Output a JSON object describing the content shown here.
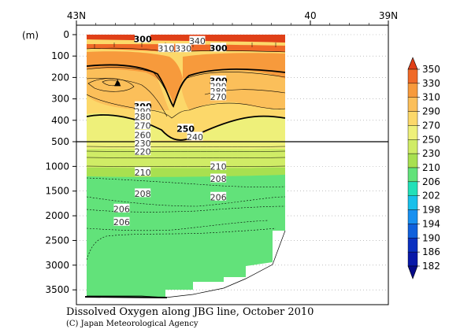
{
  "chart_data": {
    "type": "heatmap",
    "title": "Dissolved Oxygen along JBG line, October 2010",
    "credit": "(C) Japan Meteorological Agency",
    "ylabel": "(m)",
    "x_axis": {
      "ticks": [
        {
          "label": "43N",
          "lat": 43
        },
        {
          "label": "40",
          "lat": 40
        },
        {
          "label": "39N",
          "lat": 39
        }
      ],
      "range": [
        43,
        39
      ]
    },
    "y_axis": {
      "upper_panel": {
        "range": [
          0,
          500
        ],
        "ticks": [
          0,
          100,
          200,
          300,
          400,
          500
        ]
      },
      "lower_panel": {
        "range": [
          500,
          3800
        ],
        "ticks": [
          1000,
          1500,
          2000,
          2500,
          3000,
          3500
        ]
      }
    },
    "contour_labels": [
      {
        "text": "300",
        "lat": 42.15,
        "depth": 20,
        "bold": true
      },
      {
        "text": "310",
        "lat": 41.85,
        "depth": 65,
        "bold": false
      },
      {
        "text": "330",
        "lat": 41.63,
        "depth": 65,
        "bold": false
      },
      {
        "text": "340",
        "lat": 41.45,
        "depth": 30,
        "bold": false
      },
      {
        "text": "300",
        "lat": 41.18,
        "depth": 62,
        "bold": true
      },
      {
        "text": "300",
        "lat": 41.18,
        "depth": 215,
        "bold": true
      },
      {
        "text": "290",
        "lat": 41.18,
        "depth": 240,
        "bold": false
      },
      {
        "text": "280",
        "lat": 41.18,
        "depth": 265,
        "bold": false
      },
      {
        "text": "270",
        "lat": 41.18,
        "depth": 290,
        "bold": false
      },
      {
        "text": "300",
        "lat": 42.15,
        "depth": 335,
        "bold": true
      },
      {
        "text": "290",
        "lat": 42.15,
        "depth": 358,
        "bold": false
      },
      {
        "text": "280",
        "lat": 42.15,
        "depth": 383,
        "bold": false
      },
      {
        "text": "270",
        "lat": 42.15,
        "depth": 425,
        "bold": false
      },
      {
        "text": "260",
        "lat": 42.15,
        "depth": 468,
        "bold": false
      },
      {
        "text": "250",
        "lat": 41.6,
        "depth": 440,
        "bold": true
      },
      {
        "text": "240",
        "lat": 41.48,
        "depth": 478,
        "bold": false
      },
      {
        "text": "230",
        "lat": 42.15,
        "depth": 530,
        "bold": false
      },
      {
        "text": "220",
        "lat": 42.15,
        "depth": 700,
        "bold": false
      },
      {
        "text": "210",
        "lat": 42.15,
        "depth": 1120,
        "bold": false
      },
      {
        "text": "208",
        "lat": 42.15,
        "depth": 1550,
        "bold": false
      },
      {
        "text": "210",
        "lat": 41.18,
        "depth": 1000,
        "bold": false
      },
      {
        "text": "208",
        "lat": 41.18,
        "depth": 1250,
        "bold": false
      },
      {
        "text": "206",
        "lat": 41.18,
        "depth": 1620,
        "bold": false
      },
      {
        "text": "206",
        "lat": 42.42,
        "depth": 1860,
        "bold": false
      },
      {
        "text": "206",
        "lat": 42.42,
        "depth": 2130,
        "bold": false
      }
    ],
    "colorbar": {
      "levels": [
        350,
        330,
        310,
        290,
        270,
        250,
        230,
        210,
        206,
        202,
        198,
        194,
        190,
        186,
        182
      ],
      "colors": [
        "#e04018",
        "#f06a28",
        "#f79a3c",
        "#fbbf5a",
        "#fcd86a",
        "#eef07a",
        "#d0ec66",
        "#a8e050",
        "#62e27a",
        "#22e0b8",
        "#18c0ea",
        "#1890f0",
        "#1060dc",
        "#0a30c0",
        "#0818a8",
        "#060a88"
      ]
    },
    "grid": "dotted horizontal at y ticks"
  }
}
